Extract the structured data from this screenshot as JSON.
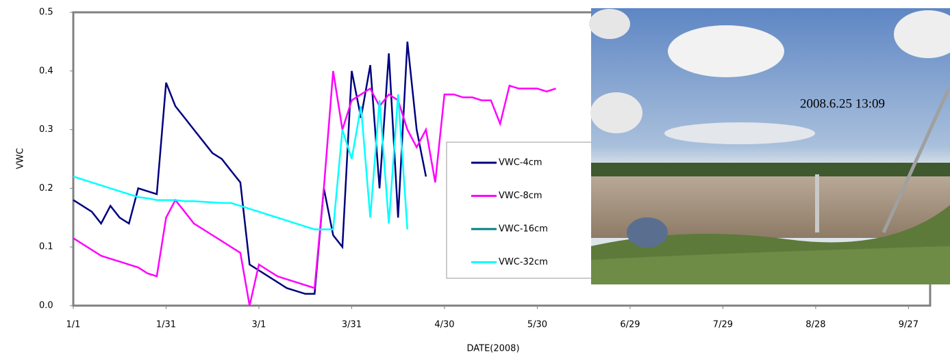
{
  "chart_data": {
    "type": "line",
    "y_label": "VWC",
    "x_label": "DATE(2008)",
    "annotation": "2008.6.25 13:09",
    "x": [
      0,
      3,
      6,
      9,
      12,
      15,
      18,
      21,
      24,
      27,
      30,
      33,
      36,
      39,
      42,
      45,
      48,
      51,
      54,
      57,
      60,
      63,
      66,
      69,
      72,
      75,
      78,
      81,
      84,
      87,
      90,
      93,
      96,
      99,
      102,
      105,
      108,
      111,
      114,
      117,
      120,
      123,
      126,
      129,
      132,
      135,
      138,
      141,
      144,
      147,
      150,
      153,
      156
    ],
    "xlim": [
      0,
      277
    ],
    "xticks": [
      {
        "value": 0,
        "label": "1/1"
      },
      {
        "value": 30,
        "label": "1/31"
      },
      {
        "value": 60,
        "label": "3/1"
      },
      {
        "value": 90,
        "label": "3/31"
      },
      {
        "value": 120,
        "label": "4/30"
      },
      {
        "value": 150,
        "label": "5/30"
      },
      {
        "value": 180,
        "label": "6/29"
      },
      {
        "value": 210,
        "label": "7/29"
      },
      {
        "value": 240,
        "label": "8/28"
      },
      {
        "value": 270,
        "label": "9/27"
      }
    ],
    "ylim": [
      0,
      0.5
    ],
    "yticks": [
      {
        "value": 0,
        "label": "0.0"
      },
      0.1,
      0.2,
      0.3,
      0.4,
      0.5
    ],
    "series": [
      {
        "name": "VWC-4cm",
        "color": "#000080",
        "values": [
          0.18,
          0.17,
          0.16,
          0.14,
          0.17,
          0.15,
          0.14,
          0.2,
          0.195,
          0.19,
          0.38,
          0.34,
          0.32,
          0.3,
          0.28,
          0.26,
          0.25,
          0.23,
          0.21,
          0.07,
          0.06,
          0.05,
          0.04,
          0.03,
          0.025,
          0.02,
          0.02,
          0.2,
          0.12,
          0.1,
          0.4,
          0.32,
          0.41,
          0.2,
          0.43,
          0.15,
          0.45,
          0.3,
          0.22,
          null,
          null,
          null,
          null,
          null,
          null,
          null,
          null,
          null,
          null,
          null,
          null,
          null,
          null
        ]
      },
      {
        "name": "VWC-8cm",
        "color": "#ff00ff",
        "values": [
          0.115,
          0.105,
          0.095,
          0.085,
          0.08,
          0.075,
          0.07,
          0.065,
          0.055,
          0.05,
          0.15,
          0.18,
          0.16,
          0.14,
          0.13,
          0.12,
          0.11,
          0.1,
          0.09,
          0.0,
          0.07,
          0.06,
          0.05,
          0.045,
          0.04,
          0.035,
          0.03,
          0.2,
          0.4,
          0.3,
          0.35,
          0.36,
          0.37,
          0.34,
          0.36,
          0.35,
          0.3,
          0.27,
          0.3,
          0.21,
          0.36,
          0.36,
          0.355,
          0.355,
          0.35,
          0.35,
          0.31,
          0.375,
          0.37,
          0.37,
          0.37,
          0.365,
          0.37
        ]
      },
      {
        "name": "VWC-16cm",
        "color": "#008080",
        "values": [
          null,
          null,
          null,
          null,
          null,
          null,
          null,
          null,
          null,
          null,
          null,
          null,
          null,
          null,
          null,
          null,
          null,
          null,
          null,
          null,
          null,
          null,
          null,
          null,
          null,
          null,
          null,
          null,
          null,
          null,
          null,
          null,
          null,
          null,
          null,
          null,
          null,
          null,
          null,
          null,
          null,
          null,
          null,
          null,
          null,
          null,
          null,
          null,
          null,
          null,
          null,
          null,
          null
        ]
      },
      {
        "name": "VWC-32cm",
        "color": "#00ffff",
        "values": [
          0.22,
          0.215,
          0.21,
          0.205,
          0.2,
          0.195,
          0.19,
          0.185,
          0.183,
          0.18,
          0.18,
          0.18,
          0.178,
          0.178,
          0.177,
          0.176,
          0.175,
          0.175,
          0.17,
          0.165,
          0.16,
          0.155,
          0.15,
          0.145,
          0.14,
          0.135,
          0.13,
          0.13,
          0.13,
          0.3,
          0.25,
          0.34,
          0.15,
          0.35,
          0.14,
          0.36,
          0.13,
          null,
          null,
          null,
          null,
          null,
          null,
          null,
          null,
          null,
          null,
          null,
          null,
          null,
          null,
          null,
          null
        ]
      }
    ]
  }
}
